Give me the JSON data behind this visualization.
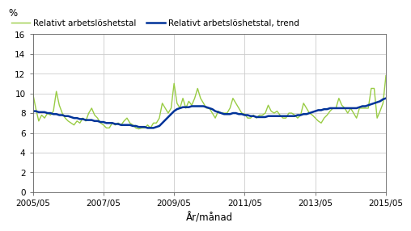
{
  "title": "",
  "ylabel": "%",
  "xlabel": "År/månad",
  "ylim": [
    0,
    16
  ],
  "yticks": [
    0,
    2,
    4,
    6,
    8,
    10,
    12,
    14,
    16
  ],
  "xtick_labels": [
    "2005/05",
    "2007/05",
    "2009/05",
    "2011/05",
    "2013/05",
    "2015/05"
  ],
  "legend_labels": [
    "Relativt arbetslöshetstal",
    "Relativt arbetslöshetstal, trend"
  ],
  "line_color_actual": "#99cc44",
  "line_color_trend": "#003399",
  "background_color": "#ffffff",
  "grid_color": "#cccccc",
  "actual": [
    10.0,
    8.5,
    7.2,
    7.8,
    7.5,
    8.0,
    7.8,
    8.2,
    10.2,
    8.8,
    8.0,
    7.5,
    7.2,
    7.0,
    6.8,
    7.2,
    7.0,
    7.5,
    7.2,
    8.0,
    8.5,
    7.8,
    7.5,
    7.0,
    6.8,
    6.5,
    6.5,
    7.0,
    6.8,
    7.0,
    6.8,
    7.2,
    7.5,
    7.0,
    6.8,
    6.5,
    6.4,
    6.5,
    6.5,
    6.8,
    6.5,
    7.0,
    7.0,
    7.5,
    9.0,
    8.5,
    8.0,
    8.5,
    11.0,
    9.0,
    8.5,
    9.5,
    8.5,
    9.2,
    8.8,
    9.5,
    10.5,
    9.5,
    9.0,
    8.5,
    8.5,
    8.0,
    7.5,
    8.2,
    8.0,
    8.0,
    8.0,
    8.5,
    9.5,
    9.0,
    8.5,
    8.0,
    7.9,
    7.5,
    7.5,
    7.8,
    7.5,
    7.8,
    7.8,
    8.0,
    8.8,
    8.2,
    8.0,
    8.2,
    7.8,
    7.5,
    7.5,
    8.0,
    8.0,
    7.8,
    7.5,
    7.8,
    9.0,
    8.5,
    8.0,
    7.8,
    7.5,
    7.2,
    7.0,
    7.5,
    7.8,
    8.2,
    8.5,
    8.5,
    9.5,
    8.8,
    8.5,
    8.0,
    8.5,
    8.0,
    7.5,
    8.5,
    8.5,
    8.5,
    8.5,
    10.5,
    10.5,
    7.5,
    8.2,
    9.0,
    11.8
  ],
  "trend": [
    8.2,
    8.2,
    8.1,
    8.1,
    8.1,
    8.0,
    8.0,
    7.9,
    7.9,
    7.8,
    7.8,
    7.7,
    7.7,
    7.6,
    7.5,
    7.5,
    7.4,
    7.4,
    7.3,
    7.3,
    7.3,
    7.2,
    7.2,
    7.1,
    7.1,
    7.0,
    7.0,
    7.0,
    6.9,
    6.9,
    6.8,
    6.8,
    6.8,
    6.8,
    6.7,
    6.7,
    6.6,
    6.6,
    6.6,
    6.5,
    6.5,
    6.5,
    6.6,
    6.7,
    7.0,
    7.3,
    7.6,
    7.9,
    8.2,
    8.4,
    8.5,
    8.6,
    8.6,
    8.6,
    8.7,
    8.7,
    8.7,
    8.7,
    8.7,
    8.6,
    8.5,
    8.4,
    8.2,
    8.1,
    8.0,
    7.9,
    7.9,
    7.9,
    8.0,
    8.0,
    7.9,
    7.9,
    7.8,
    7.8,
    7.7,
    7.7,
    7.6,
    7.6,
    7.6,
    7.6,
    7.7,
    7.7,
    7.7,
    7.7,
    7.7,
    7.7,
    7.7,
    7.7,
    7.7,
    7.7,
    7.8,
    7.8,
    7.9,
    7.9,
    8.0,
    8.1,
    8.2,
    8.3,
    8.3,
    8.4,
    8.4,
    8.5,
    8.5,
    8.5,
    8.5,
    8.5,
    8.5,
    8.5,
    8.5,
    8.5,
    8.5,
    8.6,
    8.7,
    8.7,
    8.8,
    8.9,
    9.0,
    9.1,
    9.2,
    9.4,
    9.5
  ]
}
